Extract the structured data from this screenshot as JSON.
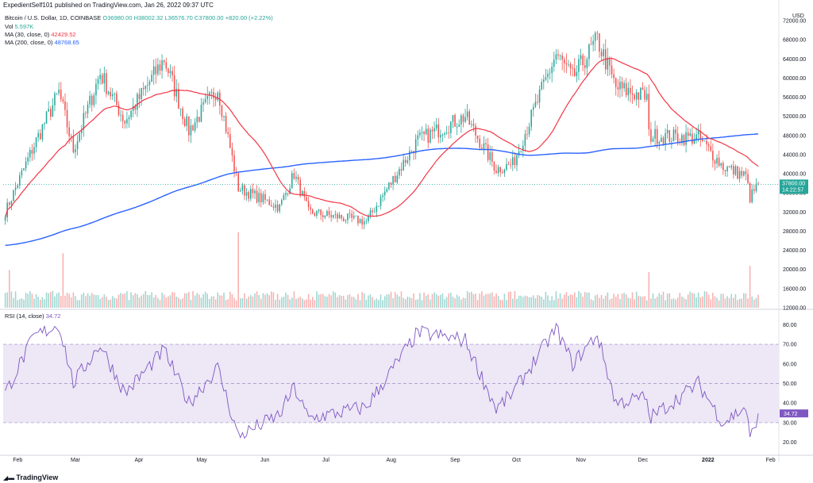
{
  "header": {
    "caption": "ExpedientSelf101 published on TradingView.com, Jan 26, 2022 09:37 UTC"
  },
  "legend": {
    "symbol": "Bitcoin / U.S. Dollar, 1D, COINBASE",
    "ohlc": "O36980.00 H38002.32 L36576.70 C37800.00 +820.00 (+2.22%)",
    "vol_label": "Vol",
    "vol_value": "5.597K",
    "ma30_label": "MA (30, close, 0)",
    "ma30_value": "42429.52",
    "ma200_label": "MA (200, close, 0)",
    "ma200_value": "48768.65",
    "rsi_label": "RSI (14, close)",
    "rsi_value": "34.72"
  },
  "footer": {
    "brand": "TradingView"
  },
  "colors": {
    "up": "#26a69a",
    "down": "#ef5350",
    "ma30": "#f23645",
    "ma200": "#2962ff",
    "rsi": "#7e57c2",
    "rsi_band": "#ede7f6"
  },
  "chart_data": [
    {
      "type": "candlestick",
      "currency": "USD",
      "ylim": [
        12000,
        74000
      ],
      "y_ticks": [
        "72000.00",
        "68000.00",
        "64000.00",
        "60000.00",
        "56000.00",
        "52000.00",
        "48000.00",
        "44000.00",
        "40000.00",
        "36000.00",
        "32000.00",
        "28000.00",
        "24000.00",
        "20000.00",
        "16000.00",
        "12000.00"
      ],
      "x_ticks": [
        "Feb",
        "Mar",
        "Apr",
        "May",
        "Jun",
        "Jul",
        "Aug",
        "Sep",
        "Oct",
        "Nov",
        "Dec",
        "2022",
        "Feb"
      ],
      "last_price_label": "37800.00",
      "countdown_label": "14:22:57",
      "close_anchors": [
        [
          "2021-01-26",
          32000
        ],
        [
          "2021-02-09",
          46000
        ],
        [
          "2021-02-21",
          57000
        ],
        [
          "2021-02-28",
          45000
        ],
        [
          "2021-03-13",
          61000
        ],
        [
          "2021-03-25",
          51000
        ],
        [
          "2021-04-13",
          64000
        ],
        [
          "2021-04-25",
          49000
        ],
        [
          "2021-05-09",
          58000
        ],
        [
          "2021-05-19",
          37000
        ],
        [
          "2021-06-08",
          33000
        ],
        [
          "2021-06-15",
          40000
        ],
        [
          "2021-06-22",
          32000
        ],
        [
          "2021-07-20",
          30000
        ],
        [
          "2021-08-14",
          47000
        ],
        [
          "2021-09-06",
          52000
        ],
        [
          "2021-09-21",
          41000
        ],
        [
          "2021-09-29",
          42000
        ],
        [
          "2021-10-20",
          65000
        ],
        [
          "2021-10-28",
          60000
        ],
        [
          "2021-11-09",
          68000
        ],
        [
          "2021-11-18",
          58000
        ],
        [
          "2021-12-03",
          56000
        ],
        [
          "2021-12-04",
          48000
        ],
        [
          "2021-12-28",
          47500
        ],
        [
          "2022-01-09",
          41500
        ],
        [
          "2022-01-20",
          39500
        ],
        [
          "2022-01-22",
          35000
        ],
        [
          "2022-01-26",
          37800
        ]
      ],
      "ma30": {
        "name": "MA (30, close, 0)",
        "last": 42429.52
      },
      "ma200": {
        "name": "MA (200, close, 0)",
        "last": 48768.65
      }
    },
    {
      "type": "bar",
      "series_name": "Vol",
      "last": "5.597K",
      "spikes": [
        [
          "2021-02-23",
          2.6
        ],
        [
          "2021-05-19",
          3.6
        ],
        [
          "2021-01-28",
          1.8
        ],
        [
          "2021-12-04",
          1.7
        ],
        [
          "2022-01-22",
          2.0
        ]
      ]
    },
    {
      "type": "line",
      "series_name": "RSI (14, close)",
      "ylim": [
        15,
        85
      ],
      "y_ticks": [
        "80.00",
        "70.00",
        "60.00",
        "50.00",
        "40.00",
        "30.00",
        "20.00"
      ],
      "band": [
        30,
        70
      ],
      "last": 34.72,
      "anchors": [
        [
          "2021-01-26",
          45
        ],
        [
          "2021-02-09",
          74
        ],
        [
          "2021-02-21",
          80
        ],
        [
          "2021-02-28",
          50
        ],
        [
          "2021-03-13",
          70
        ],
        [
          "2021-03-25",
          45
        ],
        [
          "2021-04-13",
          67
        ],
        [
          "2021-04-25",
          40
        ],
        [
          "2021-05-09",
          58
        ],
        [
          "2021-05-19",
          23
        ],
        [
          "2021-06-08",
          34
        ],
        [
          "2021-06-15",
          48
        ],
        [
          "2021-06-22",
          32
        ],
        [
          "2021-07-20",
          38
        ],
        [
          "2021-08-14",
          76
        ],
        [
          "2021-09-06",
          72
        ],
        [
          "2021-09-21",
          37
        ],
        [
          "2021-09-29",
          45
        ],
        [
          "2021-10-20",
          78
        ],
        [
          "2021-10-28",
          60
        ],
        [
          "2021-11-09",
          75
        ],
        [
          "2021-11-18",
          40
        ],
        [
          "2021-12-03",
          43
        ],
        [
          "2021-12-04",
          32
        ],
        [
          "2021-12-28",
          50
        ],
        [
          "2022-01-09",
          30
        ],
        [
          "2022-01-20",
          38
        ],
        [
          "2022-01-22",
          21
        ],
        [
          "2022-01-26",
          34.72
        ]
      ]
    }
  ]
}
